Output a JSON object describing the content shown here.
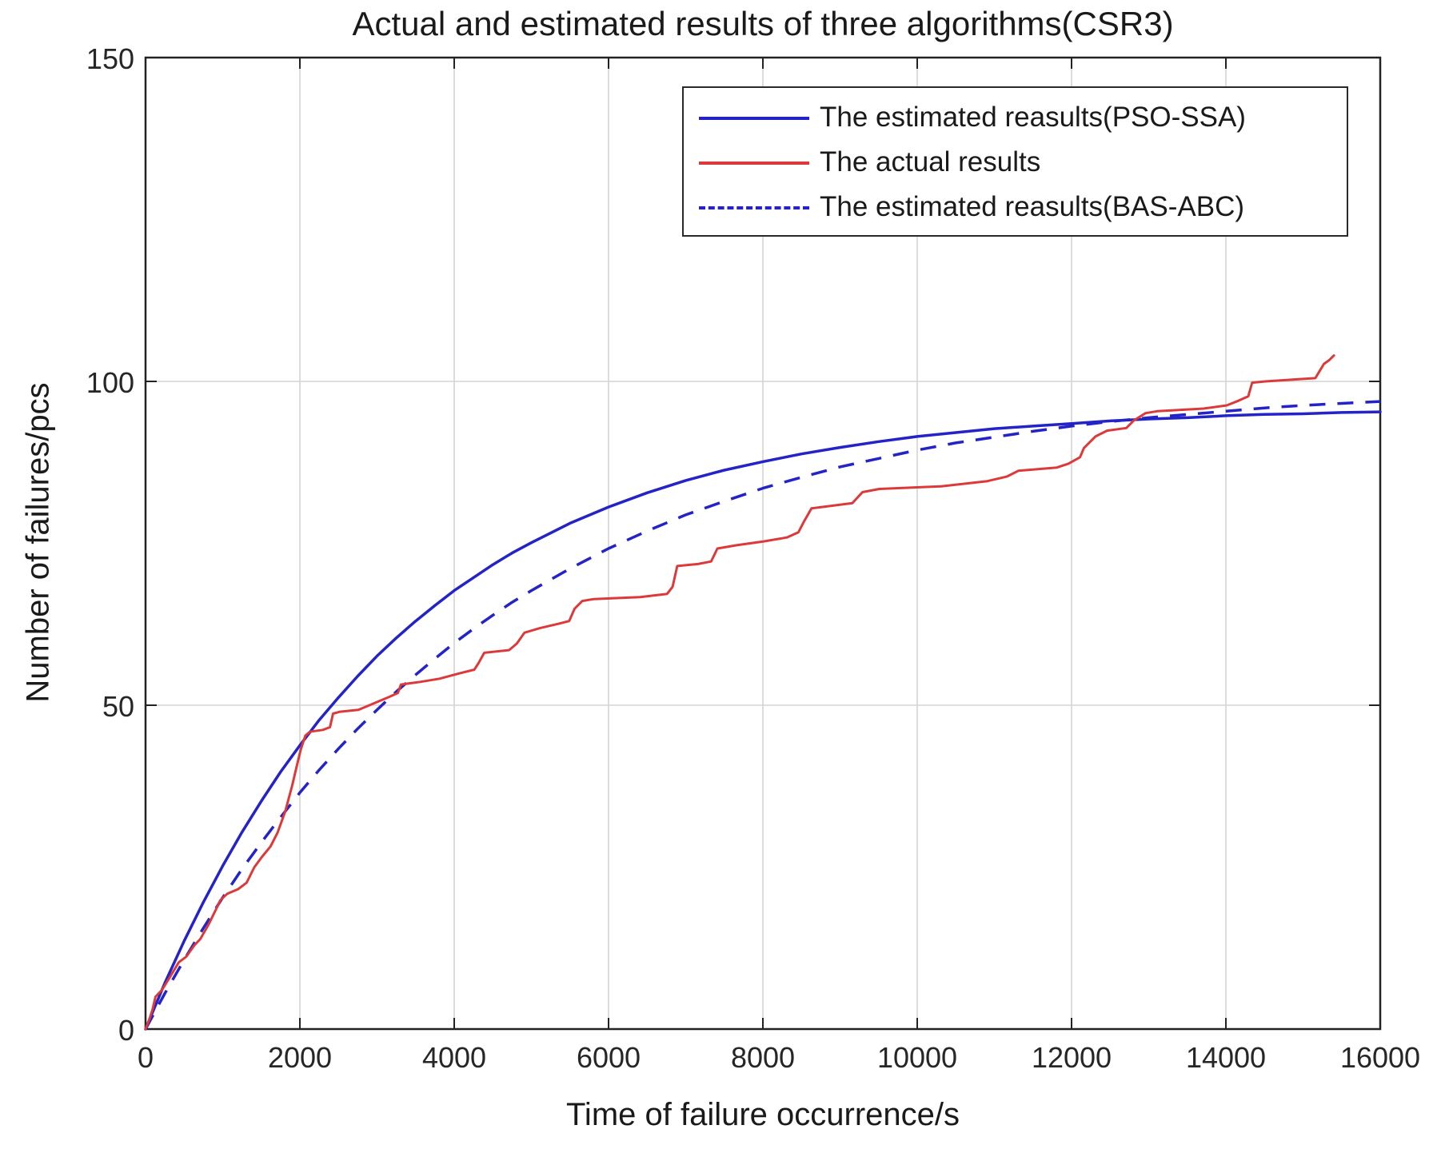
{
  "chart_data": {
    "type": "line",
    "title": "Actual and estimated results of three algorithms(CSR3)",
    "xlabel": "Time of failure occurrence/s",
    "ylabel": "Number of failures/pcs",
    "xlim": [
      0,
      16000
    ],
    "ylim": [
      0,
      150
    ],
    "grid": true,
    "legend_position": "upper-right-inside",
    "x_ticks": [
      0,
      2000,
      4000,
      6000,
      8000,
      10000,
      12000,
      14000,
      16000
    ],
    "x_tick_labels": [
      "0",
      "2000",
      "4000",
      "6000",
      "8000",
      "10000",
      "12000",
      "14000",
      "16000"
    ],
    "y_ticks": [
      0,
      50,
      100,
      150
    ],
    "y_tick_labels": [
      "0",
      "50",
      "100",
      "150"
    ],
    "colors": {
      "estimated_blue": "#2323c8",
      "actual_red": "#dc3a3a",
      "gridline": "#d4d4d4",
      "axis": "#222222",
      "text": "#1a1a1a"
    },
    "series": [
      {
        "name": "The estimated reasults(PSO-SSA)",
        "line": "solid",
        "color": "#2323c8",
        "points": [
          [
            0,
            0
          ],
          [
            250,
            7.1
          ],
          [
            500,
            13.6
          ],
          [
            750,
            19.6
          ],
          [
            1000,
            25.2
          ],
          [
            1250,
            30.4
          ],
          [
            1500,
            35.2
          ],
          [
            1750,
            39.7
          ],
          [
            2000,
            43.8
          ],
          [
            2250,
            47.7
          ],
          [
            2500,
            51.2
          ],
          [
            2750,
            54.5
          ],
          [
            3000,
            57.6
          ],
          [
            3250,
            60.4
          ],
          [
            3500,
            63
          ],
          [
            3750,
            65.4
          ],
          [
            4000,
            67.7
          ],
          [
            4250,
            69.7
          ],
          [
            4500,
            71.7
          ],
          [
            4750,
            73.5
          ],
          [
            5000,
            75.1
          ],
          [
            5500,
            78.1
          ],
          [
            6000,
            80.6
          ],
          [
            6500,
            82.8
          ],
          [
            7000,
            84.7
          ],
          [
            7500,
            86.3
          ],
          [
            8000,
            87.6
          ],
          [
            8500,
            88.8
          ],
          [
            9000,
            89.8
          ],
          [
            9500,
            90.7
          ],
          [
            10000,
            91.5
          ],
          [
            10500,
            92.1
          ],
          [
            11000,
            92.7
          ],
          [
            11500,
            93.1
          ],
          [
            12000,
            93.5
          ],
          [
            12500,
            93.9
          ],
          [
            13000,
            94.2
          ],
          [
            13500,
            94.4
          ],
          [
            14000,
            94.7
          ],
          [
            14500,
            94.9
          ],
          [
            15000,
            95
          ],
          [
            15500,
            95.2
          ],
          [
            16000,
            95.3
          ]
        ]
      },
      {
        "name": "The actual results",
        "line": "solid",
        "color": "#dc3a3a",
        "points": [
          [
            0,
            0
          ],
          [
            50,
            1.5
          ],
          [
            90,
            3
          ],
          [
            130,
            5
          ],
          [
            210,
            6
          ],
          [
            310,
            7.9
          ],
          [
            430,
            10.3
          ],
          [
            530,
            11.2
          ],
          [
            630,
            12.9
          ],
          [
            710,
            13.9
          ],
          [
            810,
            16
          ],
          [
            910,
            18.4
          ],
          [
            970,
            19.9
          ],
          [
            1060,
            20.9
          ],
          [
            1200,
            21.6
          ],
          [
            1310,
            22.6
          ],
          [
            1410,
            25
          ],
          [
            1510,
            26.6
          ],
          [
            1620,
            28.2
          ],
          [
            1710,
            30.3
          ],
          [
            1810,
            33.6
          ],
          [
            1900,
            37.6
          ],
          [
            1960,
            40.6
          ],
          [
            2010,
            43.1
          ],
          [
            2070,
            45.3
          ],
          [
            2130,
            45.9
          ],
          [
            2300,
            46.2
          ],
          [
            2390,
            46.6
          ],
          [
            2430,
            48.7
          ],
          [
            2520,
            49
          ],
          [
            2760,
            49.3
          ],
          [
            2960,
            50.3
          ],
          [
            3160,
            51.3
          ],
          [
            3270,
            51.9
          ],
          [
            3310,
            53.2
          ],
          [
            3560,
            53.6
          ],
          [
            3810,
            54.1
          ],
          [
            4060,
            54.9
          ],
          [
            4260,
            55.5
          ],
          [
            4310,
            56.4
          ],
          [
            4390,
            58.1
          ],
          [
            4710,
            58.5
          ],
          [
            4810,
            59.5
          ],
          [
            4910,
            61.2
          ],
          [
            5110,
            61.9
          ],
          [
            5360,
            62.6
          ],
          [
            5490,
            63
          ],
          [
            5560,
            64.9
          ],
          [
            5660,
            66.1
          ],
          [
            5810,
            66.4
          ],
          [
            6410,
            66.7
          ],
          [
            6760,
            67.2
          ],
          [
            6830,
            68.3
          ],
          [
            6890,
            71.5
          ],
          [
            7160,
            71.8
          ],
          [
            7330,
            72.2
          ],
          [
            7410,
            74.2
          ],
          [
            7660,
            74.7
          ],
          [
            8010,
            75.3
          ],
          [
            8310,
            75.9
          ],
          [
            8460,
            76.7
          ],
          [
            8530,
            78.3
          ],
          [
            8630,
            80.4
          ],
          [
            9160,
            81.2
          ],
          [
            9290,
            82.9
          ],
          [
            9510,
            83.4
          ],
          [
            10310,
            83.8
          ],
          [
            10910,
            84.6
          ],
          [
            11160,
            85.3
          ],
          [
            11310,
            86.2
          ],
          [
            11810,
            86.7
          ],
          [
            11960,
            87.3
          ],
          [
            12110,
            88.3
          ],
          [
            12160,
            89.7
          ],
          [
            12310,
            91.5
          ],
          [
            12460,
            92.4
          ],
          [
            12710,
            92.8
          ],
          [
            12810,
            94
          ],
          [
            12960,
            95.1
          ],
          [
            13110,
            95.4
          ],
          [
            13710,
            95.8
          ],
          [
            14010,
            96.3
          ],
          [
            14160,
            97
          ],
          [
            14290,
            97.7
          ],
          [
            14340,
            99.8
          ],
          [
            14510,
            100
          ],
          [
            15160,
            100.5
          ],
          [
            15270,
            102.7
          ],
          [
            15340,
            103.3
          ],
          [
            15400,
            104
          ]
        ]
      },
      {
        "name": "The estimated reasults(BAS-ABC)",
        "line": "dashed",
        "color": "#2323c8",
        "points": [
          [
            0,
            0
          ],
          [
            250,
            5.5
          ],
          [
            500,
            10.7
          ],
          [
            750,
            15.6
          ],
          [
            1000,
            20.3
          ],
          [
            1250,
            24.7
          ],
          [
            1500,
            28.8
          ],
          [
            1750,
            32.7
          ],
          [
            2000,
            36.5
          ],
          [
            2250,
            40
          ],
          [
            2500,
            43.3
          ],
          [
            2750,
            46.4
          ],
          [
            3000,
            49.3
          ],
          [
            3250,
            52.1
          ],
          [
            3500,
            54.7
          ],
          [
            3750,
            57.2
          ],
          [
            4000,
            59.6
          ],
          [
            4250,
            61.8
          ],
          [
            4500,
            63.9
          ],
          [
            4750,
            65.9
          ],
          [
            5000,
            67.7
          ],
          [
            5500,
            71.1
          ],
          [
            6000,
            74.2
          ],
          [
            6500,
            76.9
          ],
          [
            7000,
            79.4
          ],
          [
            7500,
            81.5
          ],
          [
            8000,
            83.5
          ],
          [
            8500,
            85.2
          ],
          [
            9000,
            86.8
          ],
          [
            9500,
            88.1
          ],
          [
            10000,
            89.4
          ],
          [
            10500,
            90.5
          ],
          [
            11000,
            91.4
          ],
          [
            11500,
            92.3
          ],
          [
            12000,
            93.1
          ],
          [
            12500,
            93.8
          ],
          [
            13000,
            94.4
          ],
          [
            13500,
            94.9
          ],
          [
            14000,
            95.4
          ],
          [
            14500,
            95.9
          ],
          [
            15000,
            96.3
          ],
          [
            15500,
            96.6
          ],
          [
            16000,
            96.9
          ]
        ]
      }
    ]
  }
}
